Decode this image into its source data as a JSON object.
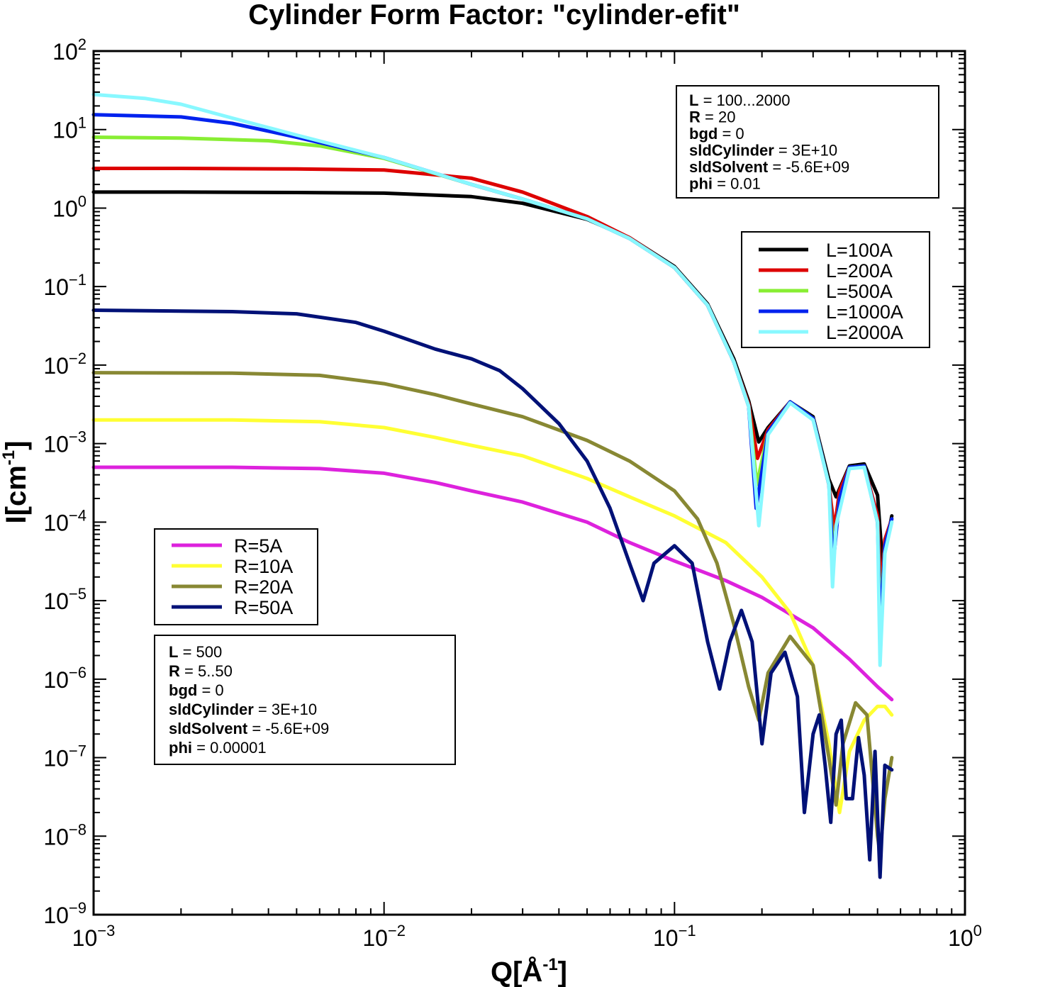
{
  "chart_data": {
    "type": "line",
    "title": "Cylinder Form Factor: \"cylinder-efit\"",
    "xlabel": "Q[Å-1]",
    "ylabel": "I[cm-1]",
    "x_scale": "log",
    "y_scale": "log",
    "xlim": [
      0.001,
      1.0
    ],
    "ylim": [
      1e-09,
      100
    ],
    "x_ticks": [
      "10-3",
      "10-2",
      "10-1",
      "100"
    ],
    "y_ticks": [
      "102",
      "101",
      "100",
      "10-1",
      "10-2",
      "10-3",
      "10-4",
      "10-5",
      "10-6",
      "10-7",
      "10-8",
      "10-9"
    ],
    "grid": false,
    "series": [
      {
        "name": "L=100A",
        "color": "#000000",
        "group": "L",
        "x": [
          0.001,
          0.002,
          0.005,
          0.01,
          0.02,
          0.03,
          0.05,
          0.07,
          0.1,
          0.13,
          0.16,
          0.18,
          0.195,
          0.21,
          0.25,
          0.3,
          0.34,
          0.36,
          0.4,
          0.45,
          0.5,
          0.52,
          0.56
        ],
        "y": [
          1.6,
          1.6,
          1.58,
          1.55,
          1.4,
          1.15,
          0.72,
          0.42,
          0.18,
          0.06,
          0.012,
          0.0035,
          0.00105,
          0.0016,
          0.0034,
          0.0022,
          0.00035,
          0.00021,
          0.00052,
          0.00055,
          0.00022,
          3e-05,
          0.00012
        ]
      },
      {
        "name": "L=200A",
        "color": "#dd0000",
        "group": "L",
        "x": [
          0.001,
          0.002,
          0.005,
          0.01,
          0.02,
          0.03,
          0.05,
          0.07,
          0.1,
          0.13,
          0.16,
          0.18,
          0.193,
          0.21,
          0.25,
          0.3,
          0.34,
          0.355,
          0.37,
          0.4,
          0.45,
          0.5,
          0.515,
          0.53,
          0.56
        ],
        "y": [
          3.2,
          3.2,
          3.15,
          3.05,
          2.4,
          1.6,
          0.78,
          0.42,
          0.175,
          0.058,
          0.011,
          0.0032,
          0.00065,
          0.0015,
          0.0034,
          0.0021,
          0.0003,
          8e-05,
          0.00025,
          0.0005,
          0.00052,
          0.00012,
          1.2e-05,
          6e-05,
          0.00011
        ]
      },
      {
        "name": "L=500A",
        "color": "#88ee33",
        "group": "L",
        "x": [
          0.001,
          0.002,
          0.004,
          0.006,
          0.01,
          0.02,
          0.03,
          0.05,
          0.07,
          0.1,
          0.13,
          0.16,
          0.18,
          0.192,
          0.21,
          0.25,
          0.3,
          0.34,
          0.353,
          0.37,
          0.4,
          0.45,
          0.5,
          0.512,
          0.53,
          0.56
        ],
        "y": [
          8.0,
          7.8,
          7.2,
          6.2,
          4.3,
          2.0,
          1.3,
          0.73,
          0.41,
          0.175,
          0.058,
          0.011,
          0.003,
          0.0003,
          0.0014,
          0.0034,
          0.0021,
          0.0003,
          4e-05,
          0.0002,
          0.0005,
          0.00052,
          0.0001,
          6e-06,
          5e-05,
          0.00011
        ]
      },
      {
        "name": "L=1000A",
        "color": "#0022ee",
        "group": "L",
        "x": [
          0.001,
          0.002,
          0.003,
          0.005,
          0.01,
          0.02,
          0.03,
          0.05,
          0.07,
          0.1,
          0.13,
          0.16,
          0.18,
          0.191,
          0.21,
          0.25,
          0.3,
          0.34,
          0.352,
          0.37,
          0.4,
          0.45,
          0.5,
          0.511,
          0.53,
          0.56
        ],
        "y": [
          15.5,
          14.5,
          12.0,
          8.0,
          4.4,
          2.0,
          1.3,
          0.73,
          0.41,
          0.175,
          0.058,
          0.011,
          0.003,
          0.00015,
          0.0014,
          0.0034,
          0.0021,
          0.0003,
          3e-05,
          0.0002,
          0.0005,
          0.00052,
          0.0001,
          4e-06,
          5e-05,
          0.00011
        ]
      },
      {
        "name": "L=2000A",
        "color": "#88f8ff",
        "group": "L",
        "x": [
          0.001,
          0.0015,
          0.002,
          0.003,
          0.005,
          0.01,
          0.02,
          0.03,
          0.05,
          0.07,
          0.1,
          0.13,
          0.16,
          0.18,
          0.19,
          0.195,
          0.21,
          0.25,
          0.3,
          0.34,
          0.35,
          0.36,
          0.4,
          0.45,
          0.5,
          0.51,
          0.53,
          0.56
        ],
        "y": [
          28,
          25,
          21,
          14,
          8.5,
          4.4,
          2.0,
          1.3,
          0.73,
          0.41,
          0.175,
          0.058,
          0.011,
          0.003,
          0.0003,
          9e-05,
          0.0013,
          0.0033,
          0.002,
          0.0003,
          1.5e-05,
          9e-05,
          0.00048,
          0.0005,
          0.0001,
          1.5e-06,
          4e-05,
          0.0001
        ]
      },
      {
        "name": "R=5A",
        "color": "#dd22dd",
        "group": "R",
        "x": [
          0.001,
          0.003,
          0.006,
          0.01,
          0.015,
          0.02,
          0.03,
          0.05,
          0.07,
          0.1,
          0.15,
          0.2,
          0.3,
          0.4,
          0.5,
          0.56
        ],
        "y": [
          0.0005,
          0.0005,
          0.00048,
          0.00042,
          0.00032,
          0.00025,
          0.00018,
          0.0001,
          5.5e-05,
          3.2e-05,
          1.8e-05,
          1.1e-05,
          4.5e-06,
          1.8e-06,
          8e-07,
          5.5e-07
        ]
      },
      {
        "name": "R=10A",
        "color": "#ffff33",
        "group": "R",
        "x": [
          0.001,
          0.003,
          0.006,
          0.01,
          0.015,
          0.02,
          0.03,
          0.05,
          0.07,
          0.1,
          0.15,
          0.2,
          0.25,
          0.3,
          0.34,
          0.37,
          0.4,
          0.45,
          0.5,
          0.53,
          0.56
        ],
        "y": [
          0.002,
          0.002,
          0.0019,
          0.0016,
          0.0012,
          0.00095,
          0.0007,
          0.00036,
          0.00021,
          0.00012,
          5.5e-05,
          2e-05,
          7e-06,
          1.5e-06,
          1.5e-07,
          2e-08,
          1.2e-07,
          3e-07,
          4.5e-07,
          4.5e-07,
          3.5e-07
        ]
      },
      {
        "name": "R=20A",
        "color": "#888833",
        "group": "R",
        "x": [
          0.001,
          0.003,
          0.006,
          0.01,
          0.015,
          0.02,
          0.03,
          0.05,
          0.07,
          0.1,
          0.12,
          0.14,
          0.16,
          0.18,
          0.195,
          0.21,
          0.25,
          0.3,
          0.34,
          0.36,
          0.38,
          0.42,
          0.46,
          0.5,
          0.51,
          0.53,
          0.56
        ],
        "y": [
          0.008,
          0.0079,
          0.0074,
          0.0058,
          0.0042,
          0.0032,
          0.0022,
          0.0011,
          0.0006,
          0.00025,
          0.00011,
          3e-05,
          5e-06,
          8e-07,
          3e-07,
          1.2e-06,
          3.5e-06,
          1.5e-06,
          1e-07,
          2.5e-08,
          1.5e-07,
          5e-07,
          3.5e-07,
          1e-08,
          6e-09,
          3e-08,
          1e-07
        ]
      },
      {
        "name": "R=50A",
        "color": "#001177",
        "group": "R",
        "x": [
          0.001,
          0.003,
          0.005,
          0.008,
          0.01,
          0.015,
          0.02,
          0.025,
          0.03,
          0.04,
          0.05,
          0.06,
          0.07,
          0.078,
          0.085,
          0.1,
          0.115,
          0.13,
          0.143,
          0.155,
          0.17,
          0.185,
          0.2,
          0.215,
          0.24,
          0.265,
          0.28,
          0.3,
          0.315,
          0.33,
          0.345,
          0.36,
          0.375,
          0.39,
          0.41,
          0.43,
          0.45,
          0.47,
          0.49,
          0.51,
          0.53,
          0.56
        ],
        "y": [
          0.05,
          0.048,
          0.045,
          0.035,
          0.027,
          0.016,
          0.012,
          0.0085,
          0.005,
          0.0018,
          0.0006,
          0.00015,
          3e-05,
          1e-05,
          3e-05,
          5e-05,
          3e-05,
          3e-06,
          7.5e-07,
          3e-06,
          7.5e-06,
          3e-06,
          1.5e-07,
          1.2e-06,
          2.2e-06,
          6e-07,
          2e-08,
          2e-07,
          3.5e-07,
          8e-08,
          1.5e-08,
          2e-07,
          3e-07,
          3e-08,
          3e-08,
          1.8e-07,
          6e-08,
          5e-09,
          1.2e-07,
          3e-09,
          8e-08,
          7e-08
        ]
      }
    ],
    "legends": [
      {
        "placement": "upper-right",
        "entries": [
          "L=100A",
          "L=200A",
          "L=500A",
          "L=1000A",
          "L=2000A"
        ]
      },
      {
        "placement": "lower-left",
        "entries": [
          "R=5A",
          "R=10A",
          "R=20A",
          "R=50A"
        ]
      }
    ],
    "annotations": [
      {
        "placement": "top-right",
        "lines": [
          {
            "key": "L",
            "value": " = 100...2000"
          },
          {
            "key": "R",
            "value": " = 20"
          },
          {
            "key": "bgd",
            "value": " = 0"
          },
          {
            "key": "sldCylinder",
            "value": " = 3E+10"
          },
          {
            "key": "sldSolvent",
            "value": " = -5.6E+09"
          },
          {
            "key": "phi",
            "value": " = 0.01"
          }
        ]
      },
      {
        "placement": "lower-left",
        "lines": [
          {
            "key": "L",
            "value": " = 500"
          },
          {
            "key": "R",
            "value": " = 5..50"
          },
          {
            "key": "bgd",
            "value": " = 0"
          },
          {
            "key": "sldCylinder",
            "value": " = 3E+10"
          },
          {
            "key": "sldSolvent",
            "value": " = -5.6E+09"
          },
          {
            "key": "phi",
            "value": " = 0.00001"
          }
        ]
      }
    ]
  }
}
